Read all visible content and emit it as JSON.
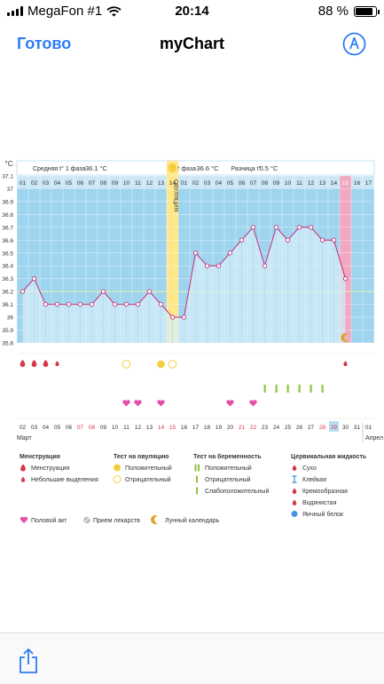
{
  "status_bar": {
    "carrier": "MegaFon #1",
    "time": "20:14",
    "battery": "88 %",
    "battery_level": 0.88
  },
  "nav": {
    "done": "Готово",
    "title": "myChart"
  },
  "chart_data": {
    "type": "line",
    "y_unit": "°C",
    "ylim": [
      35.8,
      37.1
    ],
    "yticks": [
      "37.1",
      "37",
      "36.9",
      "36.8",
      "36.7",
      "36.6",
      "36.5",
      "36.4",
      "36.3",
      "36.2",
      "36.1",
      "36",
      "35.9",
      "35.8"
    ],
    "coverline": 36.2,
    "header": {
      "avg1_label": "Средняя t° 1 фаза",
      "avg1_value": "36.1 °C",
      "avg2_label": "2 фаза",
      "avg2_value": "36.6 °C",
      "diff_label": "Разница t°",
      "diff_value": "0.5 °C"
    },
    "ovulation_label": "ОВУЛЯЦИЯ",
    "cycle_days": [
      "01",
      "02",
      "03",
      "04",
      "05",
      "06",
      "07",
      "08",
      "09",
      "10",
      "11",
      "12",
      "13",
      "14",
      "01",
      "02",
      "03",
      "04",
      "05",
      "06",
      "07",
      "08",
      "09",
      "10",
      "11",
      "12",
      "13",
      "14",
      "15",
      "16",
      "17"
    ],
    "values": [
      36.2,
      36.3,
      36.1,
      36.1,
      36.1,
      36.1,
      36.1,
      36.2,
      36.1,
      36.1,
      36.1,
      36.2,
      36.1,
      36.0,
      36.0,
      36.5,
      36.4,
      36.4,
      36.5,
      36.6,
      36.7,
      36.4,
      36.7,
      36.6,
      36.7,
      36.7,
      36.6,
      36.6,
      36.3,
      null,
      null
    ],
    "highlight_day_index": 28,
    "dates": [
      "02",
      "03",
      "04",
      "05",
      "06",
      "07",
      "08",
      "09",
      "10",
      "11",
      "12",
      "13",
      "14",
      "15",
      "16",
      "17",
      "18",
      "19",
      "20",
      "21",
      "22",
      "23",
      "24",
      "25",
      "26",
      "27",
      "28",
      "29",
      "30",
      "31",
      "01"
    ],
    "red_date_indices": [
      5,
      6,
      12,
      13,
      19,
      20,
      26,
      27
    ],
    "highlight_date_index": 27,
    "month_start": "Март",
    "month_next": "Апрел",
    "menstruation_days": [
      0,
      1,
      2
    ],
    "small_menstruation_days": [
      3,
      28
    ],
    "ovulation_positive_days": [
      12
    ],
    "ovulation_negative_days": [
      9,
      13
    ],
    "pregnancy_weak_days": [
      21,
      22,
      23,
      24,
      25,
      26
    ],
    "intercourse_days": [
      9,
      10,
      12,
      18,
      20
    ],
    "moon_days": [
      28
    ]
  },
  "legend": {
    "menstruation": {
      "title": "Менструация",
      "items": [
        "Менструация",
        "Небольшие выделения"
      ]
    },
    "ovulation_test": {
      "title": "Тест на овуляцию",
      "items": [
        "Положительный",
        "Отрицательный"
      ]
    },
    "pregnancy_test": {
      "title": "Тест на беременность",
      "items": [
        "Положительный",
        "Отрицательный",
        "Слабоположительный"
      ]
    },
    "cervical": {
      "title": "Цервикальная жидкость",
      "items": [
        "Сухо",
        "Клейкая",
        "Кремообразная",
        "Водянистая",
        "Яичный белок"
      ]
    },
    "bottom_row": [
      "Половой акт",
      "Прием лекарств",
      "Лунный календарь"
    ]
  },
  "colors": {
    "accent": "#2d7cf6",
    "chart_bg": "#9fd4ef",
    "ovulation_band": "#ffe78a",
    "highlight_col": "#f2a8c0",
    "line": "#c23a7e",
    "menstruation": "#d9374a",
    "intercourse": "#e44fa7",
    "pregnancy": "#8ec63f"
  }
}
